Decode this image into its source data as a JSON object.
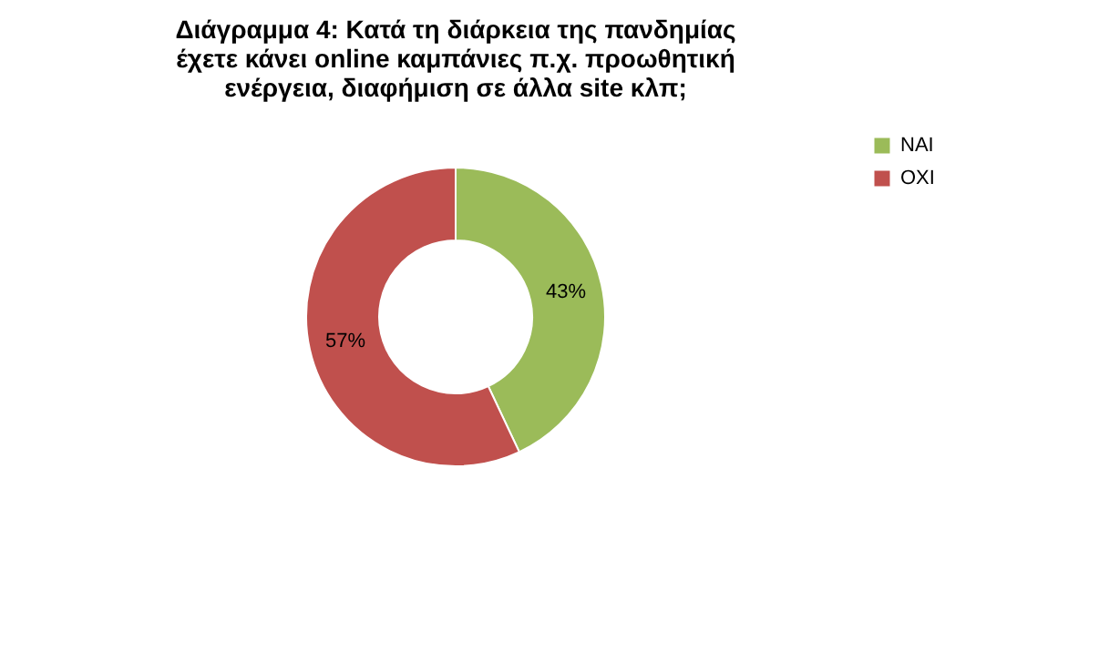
{
  "chart_data": {
    "type": "donut",
    "title": "Διάγραμμα 4: Κατά τη διάρκεια της πανδημίας έχετε κάνει online καμπάνιες π.χ. προωθητική ενέργεια, διαφήμιση σε άλλα site κλπ;",
    "categories": [
      "ΝΑΙ",
      "ΟΧΙ"
    ],
    "values": [
      43,
      57
    ],
    "colors": [
      "#9bbb59",
      "#c0504d"
    ],
    "value_labels": [
      "43%",
      "57%"
    ],
    "legend": "right"
  }
}
